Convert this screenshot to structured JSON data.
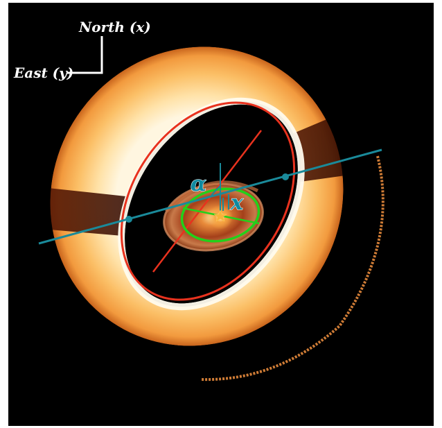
{
  "compass": {
    "north_label": "North (x)",
    "east_label": "East (y)"
  },
  "annotations": {
    "alpha_symbol": "α",
    "x_symbol": "x"
  },
  "colors": {
    "background": "#000000",
    "outer_ellipse": "#e8321e",
    "inner_ellipse": "#22d11a",
    "axis_line": "#1a8a9a",
    "disk_bright": "#ffe6b8",
    "disk_mid": "#f5a24a",
    "disk_dark": "#7a2a08",
    "labels": "#ffffff"
  }
}
